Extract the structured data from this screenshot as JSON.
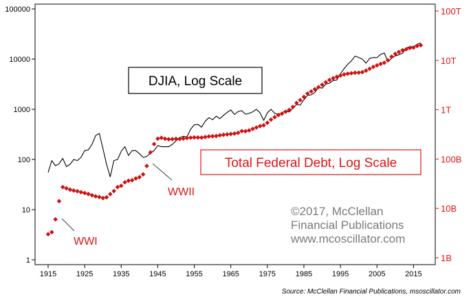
{
  "chart_data": {
    "type": "line",
    "x_axis": {
      "ticks": [
        "1915",
        "1925",
        "1935",
        "1945",
        "1955",
        "1965",
        "1975",
        "1985",
        "1995",
        "2005",
        "2015"
      ],
      "range": [
        1912,
        2020
      ]
    },
    "y_left": {
      "scale": "log",
      "ticks": [
        "100000",
        "10000",
        "1000",
        "100",
        "10",
        "1"
      ],
      "range": [
        1,
        100000
      ]
    },
    "y_right": {
      "scale": "log",
      "ticks": [
        "100T",
        "10T",
        "1T",
        "100B",
        "10B",
        "1B"
      ],
      "range_dollars": [
        1000000000.0,
        100000000000000.0
      ]
    },
    "labels": {
      "djia_box": "DJIA, Log Scale",
      "debt_box": "Total Federal Debt, Log Scale",
      "wwi": "WWI",
      "wwii": "WWII",
      "copyright_lines": [
        "©2017, McClellan",
        "Financial Publications",
        "www.mcoscillator.com"
      ],
      "source": "Source: McClellan Financial Publications, msoscillator.com"
    },
    "colors": {
      "djia_line": "#000000",
      "debt_marker": "#d01010",
      "right_axis": "#e01414"
    },
    "series": [
      {
        "kind": "djia",
        "points": [
          [
            1915,
            55
          ],
          [
            1916,
            95
          ],
          [
            1917,
            75
          ],
          [
            1918,
            82
          ],
          [
            1919,
            105
          ],
          [
            1920,
            72
          ],
          [
            1921,
            80
          ],
          [
            1922,
            100
          ],
          [
            1923,
            95
          ],
          [
            1924,
            110
          ],
          [
            1925,
            150
          ],
          [
            1926,
            155
          ],
          [
            1927,
            200
          ],
          [
            1928,
            300
          ],
          [
            1929,
            330
          ],
          [
            1930,
            165
          ],
          [
            1931,
            80
          ],
          [
            1932,
            45
          ],
          [
            1933,
            95
          ],
          [
            1934,
            100
          ],
          [
            1935,
            145
          ],
          [
            1936,
            180
          ],
          [
            1937,
            120
          ],
          [
            1938,
            150
          ],
          [
            1939,
            150
          ],
          [
            1940,
            130
          ],
          [
            1941,
            110
          ],
          [
            1942,
            115
          ],
          [
            1943,
            135
          ],
          [
            1944,
            150
          ],
          [
            1945,
            190
          ],
          [
            1946,
            180
          ],
          [
            1947,
            180
          ],
          [
            1948,
            180
          ],
          [
            1949,
            200
          ],
          [
            1950,
            235
          ],
          [
            1951,
            270
          ],
          [
            1952,
            290
          ],
          [
            1953,
            280
          ],
          [
            1954,
            400
          ],
          [
            1955,
            490
          ],
          [
            1956,
            500
          ],
          [
            1957,
            440
          ],
          [
            1958,
            580
          ],
          [
            1959,
            680
          ],
          [
            1960,
            620
          ],
          [
            1961,
            730
          ],
          [
            1962,
            650
          ],
          [
            1963,
            760
          ],
          [
            1964,
            870
          ],
          [
            1965,
            970
          ],
          [
            1966,
            790
          ],
          [
            1967,
            900
          ],
          [
            1968,
            940
          ],
          [
            1969,
            800
          ],
          [
            1970,
            830
          ],
          [
            1971,
            890
          ],
          [
            1972,
            1000
          ],
          [
            1973,
            850
          ],
          [
            1974,
            600
          ],
          [
            1975,
            850
          ],
          [
            1976,
            1000
          ],
          [
            1977,
            830
          ],
          [
            1978,
            800
          ],
          [
            1979,
            840
          ],
          [
            1980,
            960
          ],
          [
            1981,
            880
          ],
          [
            1982,
            1050
          ],
          [
            1983,
            1250
          ],
          [
            1984,
            1210
          ],
          [
            1985,
            1550
          ],
          [
            1986,
            1900
          ],
          [
            1987,
            1940
          ],
          [
            1988,
            2170
          ],
          [
            1989,
            2750
          ],
          [
            1990,
            2630
          ],
          [
            1991,
            3170
          ],
          [
            1992,
            3300
          ],
          [
            1993,
            3750
          ],
          [
            1994,
            3830
          ],
          [
            1995,
            5100
          ],
          [
            1996,
            6450
          ],
          [
            1997,
            7900
          ],
          [
            1998,
            9200
          ],
          [
            1999,
            11500
          ],
          [
            2000,
            10800
          ],
          [
            2001,
            10000
          ],
          [
            2002,
            8300
          ],
          [
            2003,
            10400
          ],
          [
            2004,
            10800
          ],
          [
            2005,
            10700
          ],
          [
            2006,
            12400
          ],
          [
            2007,
            13300
          ],
          [
            2008,
            8800
          ],
          [
            2009,
            10400
          ],
          [
            2010,
            11600
          ],
          [
            2011,
            12200
          ],
          [
            2012,
            13100
          ],
          [
            2013,
            16500
          ],
          [
            2014,
            17800
          ],
          [
            2015,
            17400
          ],
          [
            2016,
            19800
          ],
          [
            2017,
            21000
          ]
        ]
      },
      {
        "kind": "federal_debt_dollars",
        "points": [
          [
            1915,
            3000000000.0
          ],
          [
            1916,
            3300000000.0
          ],
          [
            1917,
            6000000000.0
          ],
          [
            1918,
            14000000000.0
          ],
          [
            1919,
            27000000000.0
          ],
          [
            1920,
            25500000000.0
          ],
          [
            1921,
            24000000000.0
          ],
          [
            1922,
            23000000000.0
          ],
          [
            1923,
            22300000000.0
          ],
          [
            1924,
            21300000000.0
          ],
          [
            1925,
            20500000000.0
          ],
          [
            1926,
            19600000000.0
          ],
          [
            1927,
            18500000000.0
          ],
          [
            1928,
            17600000000.0
          ],
          [
            1929,
            17000000000.0
          ],
          [
            1930,
            16200000000.0
          ],
          [
            1931,
            16800000000.0
          ],
          [
            1932,
            19500000000.0
          ],
          [
            1933,
            22500000000.0
          ],
          [
            1934,
            27000000000.0
          ],
          [
            1935,
            28700000000.0
          ],
          [
            1936,
            33800000000.0
          ],
          [
            1937,
            36400000000.0
          ],
          [
            1938,
            37200000000.0
          ],
          [
            1939,
            40400000000.0
          ],
          [
            1940,
            43000000000.0
          ],
          [
            1941,
            49000000000.0
          ],
          [
            1942,
            72400000000.0
          ],
          [
            1943,
            136700000000.0
          ],
          [
            1944,
            201000000000.0
          ],
          [
            1945,
            258700000000.0
          ],
          [
            1946,
            269400000000.0
          ],
          [
            1947,
            258000000000.0
          ],
          [
            1948,
            252000000000.0
          ],
          [
            1949,
            252800000000.0
          ],
          [
            1950,
            257400000000.0
          ],
          [
            1951,
            255200000000.0
          ],
          [
            1952,
            259100000000.0
          ],
          [
            1953,
            266100000000.0
          ],
          [
            1954,
            271300000000.0
          ],
          [
            1955,
            274400000000.0
          ],
          [
            1956,
            272800000000.0
          ],
          [
            1957,
            272400000000.0
          ],
          [
            1958,
            279700000000.0
          ],
          [
            1959,
            287500000000.0
          ],
          [
            1960,
            290500000000.0
          ],
          [
            1961,
            292600000000.0
          ],
          [
            1962,
            302900000000.0
          ],
          [
            1963,
            310300000000.0
          ],
          [
            1964,
            316100000000.0
          ],
          [
            1965,
            322300000000.0
          ],
          [
            1966,
            328500000000.0
          ],
          [
            1967,
            340400000000.0
          ],
          [
            1968,
            368700000000.0
          ],
          [
            1969,
            365800000000.0
          ],
          [
            1970,
            380900000000.0
          ],
          [
            1971,
            408200000000.0
          ],
          [
            1972,
            435900000000.0
          ],
          [
            1973,
            466300000000.0
          ],
          [
            1974,
            483900000000.0
          ],
          [
            1975,
            541900000000.0
          ],
          [
            1976,
            629000000000.0
          ],
          [
            1977,
            706400000000.0
          ],
          [
            1978,
            776600000000.0
          ],
          [
            1979,
            829500000000.0
          ],
          [
            1980,
            909000000000.0
          ],
          [
            1981,
            994800000000.0
          ],
          [
            1982,
            1137000000000.0
          ],
          [
            1983,
            1372000000000.0
          ],
          [
            1984,
            1565000000000.0
          ],
          [
            1985,
            1817000000000.0
          ],
          [
            1986,
            2121000000000.0
          ],
          [
            1987,
            2346000000000.0
          ],
          [
            1988,
            2601000000000.0
          ],
          [
            1989,
            2868000000000.0
          ],
          [
            1990,
            3207000000000.0
          ],
          [
            1991,
            3598000000000.0
          ],
          [
            1992,
            4002000000000.0
          ],
          [
            1993,
            4351000000000.0
          ],
          [
            1994,
            4643000000000.0
          ],
          [
            1995,
            4921000000000.0
          ],
          [
            1996,
            5181000000000.0
          ],
          [
            1997,
            5369000000000.0
          ],
          [
            1998,
            5478000000000.0
          ],
          [
            1999,
            5606000000000.0
          ],
          [
            2000,
            5629000000000.0
          ],
          [
            2001,
            5770000000000.0
          ],
          [
            2002,
            6198000000000.0
          ],
          [
            2003,
            6760000000000.0
          ],
          [
            2004,
            7355000000000.0
          ],
          [
            2005,
            7905000000000.0
          ],
          [
            2006,
            8451000000000.0
          ],
          [
            2007,
            8951000000000.0
          ],
          [
            2008,
            9986000000000.0
          ],
          [
            2009,
            11876000000000.0
          ],
          [
            2010,
            13529000000000.0
          ],
          [
            2011,
            14764000000000.0
          ],
          [
            2012,
            16051000000000.0
          ],
          [
            2013,
            16719000000000.0
          ],
          [
            2014,
            17794000000000.0
          ],
          [
            2015,
            18120000000000.0
          ],
          [
            2016,
            19539000000000.0
          ],
          [
            2017,
            20200000000000.0
          ]
        ]
      }
    ]
  }
}
